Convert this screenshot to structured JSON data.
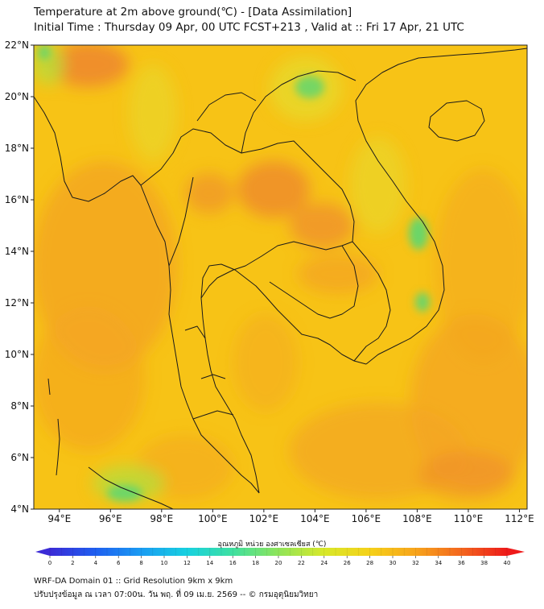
{
  "header": {
    "title": "Temperature at 2m above ground(℃) - [Data Assimilation]",
    "subtitle": "Initial Time : Thursday 09 Apr, 00 UTC FCST+213 , Valid at :: Fri 17 Apr, 21 UTC"
  },
  "map": {
    "lat_labels": [
      "22°N",
      "20°N",
      "18°N",
      "16°N",
      "14°N",
      "12°N",
      "10°N",
      "8°N",
      "6°N",
      "4°N"
    ],
    "lon_labels": [
      "94°E",
      "96°E",
      "98°E",
      "100°E",
      "102°E",
      "104°E",
      "106°E",
      "108°E",
      "110°E",
      "112°E"
    ],
    "lat_range": [
      4,
      22
    ],
    "lon_range": [
      93,
      112.3
    ],
    "field_colors": {
      "base": "#f7c316",
      "warm": "#f3a322",
      "hot": "#ee8a2c",
      "cool": "#e9d62a",
      "cooler": "#b9dc3c",
      "coolest": "#62d66e"
    },
    "border_color": "#1a1a1a"
  },
  "colorbar": {
    "title": "อุณหภูมิ หน่วย องศาเซลเซียส (℃)",
    "ticks": [
      "0",
      "2",
      "4",
      "6",
      "8",
      "10",
      "12",
      "14",
      "16",
      "18",
      "20",
      "22",
      "24",
      "26",
      "28",
      "30",
      "32",
      "34",
      "36",
      "38",
      "40"
    ],
    "colors": [
      "#3b2bd6",
      "#1f5ff0",
      "#1a9cf2",
      "#18d1e0",
      "#3fe0a0",
      "#8fe45a",
      "#d8e82a",
      "#f5d11a",
      "#f7a41c",
      "#f3661e",
      "#ee1a1a"
    ]
  },
  "footer": {
    "line1": "WRF-DA Domain 01 :: Grid Resolution 9km x 9km",
    "line2": "ปรับปรุงข้อมูล ณ เวลา 07:00น. วัน พฤ. ที่ 09 เม.ย. 2569 -- © กรมอุตุนิยมวิทยา"
  }
}
